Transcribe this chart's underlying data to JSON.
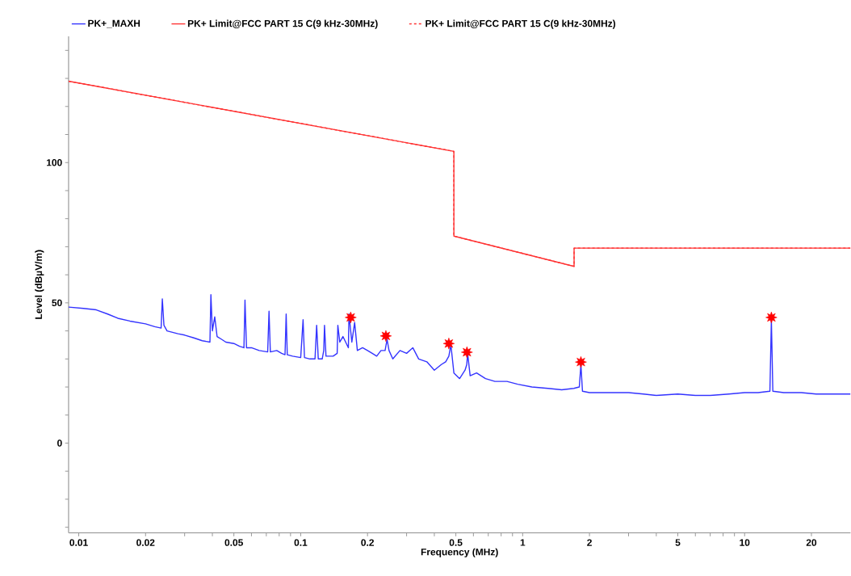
{
  "chart_data": {
    "type": "line",
    "xlabel": "Frequency (MHz)",
    "ylabel": "Level (dBµV/m)",
    "log": "x",
    "legend": "top",
    "marker": "none",
    "line_style": "solid",
    "xlim": [
      0.009,
      30
    ],
    "ylim": [
      -32,
      145
    ],
    "xticks": [
      0.01,
      0.02,
      {
        "value": 0.03,
        "label": null
      },
      {
        "value": 0.04,
        "label": null
      },
      0.05,
      {
        "value": 0.06,
        "label": null
      },
      {
        "value": 0.07,
        "label": null
      },
      {
        "value": 0.08,
        "label": null
      },
      {
        "value": 0.09,
        "label": null
      },
      0.1,
      0.2,
      {
        "value": 0.3,
        "label": null
      },
      {
        "value": 0.4,
        "label": null
      },
      0.5,
      {
        "value": 0.6,
        "label": null
      },
      {
        "value": 0.7,
        "label": null
      },
      {
        "value": 0.8,
        "label": null
      },
      {
        "value": 0.9,
        "label": null
      },
      1,
      2,
      {
        "value": 3,
        "label": null
      },
      {
        "value": 4,
        "label": null
      },
      5,
      {
        "value": 6,
        "label": null
      },
      {
        "value": 7,
        "label": null
      },
      {
        "value": 8,
        "label": null
      },
      {
        "value": 9,
        "label": null
      },
      10,
      20
    ],
    "yticks": [
      {
        "value": -30,
        "label": null
      },
      {
        "value": -20,
        "label": null
      },
      {
        "value": -10,
        "label": null
      },
      0,
      {
        "value": 10,
        "label": null
      },
      {
        "value": 20,
        "label": null
      },
      {
        "value": 30,
        "label": null
      },
      {
        "value": 40,
        "label": null
      },
      50,
      {
        "value": 60,
        "label": null
      },
      {
        "value": 70,
        "label": null
      },
      {
        "value": 80,
        "label": null
      },
      {
        "value": 90,
        "label": null
      },
      100,
      {
        "value": 110,
        "label": null
      },
      {
        "value": 120,
        "label": null
      },
      {
        "value": 130,
        "label": null
      },
      {
        "value": 140,
        "label": null
      }
    ],
    "series": [
      {
        "name": "PK+_MAXH",
        "color": "#3333ff",
        "x": [
          0.009,
          0.0105,
          0.012,
          0.0135,
          0.015,
          0.017,
          0.02,
          0.022,
          0.0235,
          0.0238,
          0.0242,
          0.025,
          0.028,
          0.03,
          0.033,
          0.036,
          0.039,
          0.0394,
          0.04,
          0.041,
          0.042,
          0.044,
          0.046,
          0.05,
          0.053,
          0.0555,
          0.0561,
          0.057,
          0.06,
          0.065,
          0.071,
          0.072,
          0.073,
          0.078,
          0.082,
          0.085,
          0.086,
          0.087,
          0.092,
          0.1,
          0.1025,
          0.104,
          0.11,
          0.116,
          0.118,
          0.12,
          0.125,
          0.127,
          0.128,
          0.13,
          0.14,
          0.146,
          0.147,
          0.15,
          0.155,
          0.164,
          0.165,
          0.17,
          0.175,
          0.18,
          0.19,
          0.2,
          0.21,
          0.22,
          0.23,
          0.24,
          0.245,
          0.25,
          0.26,
          0.28,
          0.3,
          0.32,
          0.34,
          0.37,
          0.4,
          0.43,
          0.45,
          0.465,
          0.475,
          0.49,
          0.52,
          0.55,
          0.56,
          0.565,
          0.58,
          0.62,
          0.68,
          0.75,
          0.85,
          0.95,
          1.1,
          1.3,
          1.5,
          1.7,
          1.8,
          1.83,
          1.86,
          2.0,
          2.4,
          3.0,
          3.5,
          4.0,
          5.0,
          6.0,
          7.0,
          8.5,
          10.0,
          11.5,
          13.0,
          13.2,
          13.4,
          15.0,
          18.0,
          21.0,
          25.0,
          30.0
        ],
        "values": [
          48.5,
          48,
          47.5,
          46,
          44.5,
          43.5,
          42.5,
          41.5,
          41,
          51.4,
          42,
          40,
          39,
          38.5,
          37.5,
          36.5,
          36,
          52.9,
          40,
          45,
          38,
          37,
          36,
          35.5,
          34.5,
          34,
          51,
          34,
          34,
          33,
          32.5,
          47,
          32.5,
          33,
          32,
          31.5,
          46,
          31.5,
          31,
          30.5,
          44,
          30.5,
          30,
          30,
          42,
          30,
          30,
          33,
          42,
          31,
          31,
          32,
          42,
          36,
          38,
          34,
          46,
          36,
          43,
          33,
          34,
          33,
          32,
          31,
          33,
          33,
          37,
          33,
          30,
          33,
          32,
          34,
          30,
          29,
          26,
          28,
          29,
          31,
          35,
          25,
          23,
          26,
          28,
          32,
          24,
          25,
          23,
          22,
          22,
          21,
          20,
          19.5,
          19,
          19.5,
          20,
          28,
          18.5,
          18,
          18,
          18,
          17.5,
          17,
          17.5,
          17,
          17,
          17.5,
          18,
          18,
          18.5,
          44,
          18.5,
          18,
          18,
          17.5,
          17.5,
          17.5
        ]
      },
      {
        "name": "PK+ Limit@FCC PART 15 C(9 kHz-30MHz)",
        "color": "#ff3333",
        "x": [
          0.009,
          0.49,
          0.49,
          1.705,
          1.705,
          30
        ],
        "values": [
          129,
          104,
          73.8,
          63,
          69.5,
          69.5
        ]
      },
      {
        "name": "PK+ Limit@FCC PART 15 C(9 kHz-30MHz)",
        "color": "#ff3333",
        "line_style": "dashed",
        "x": [
          0.009,
          0.49,
          0.49,
          1.705,
          1.705,
          30
        ],
        "values": [
          129,
          104,
          73.8,
          63,
          69.5,
          69.5
        ]
      },
      {
        "type": "scatter",
        "color": "#ff0000",
        "marker": "star",
        "x": [
          0.168,
          0.242,
          0.465,
          0.561,
          1.83,
          13.2
        ],
        "values": [
          44.8,
          38.2,
          35.5,
          32.4,
          28.9,
          44.8
        ]
      }
    ]
  }
}
